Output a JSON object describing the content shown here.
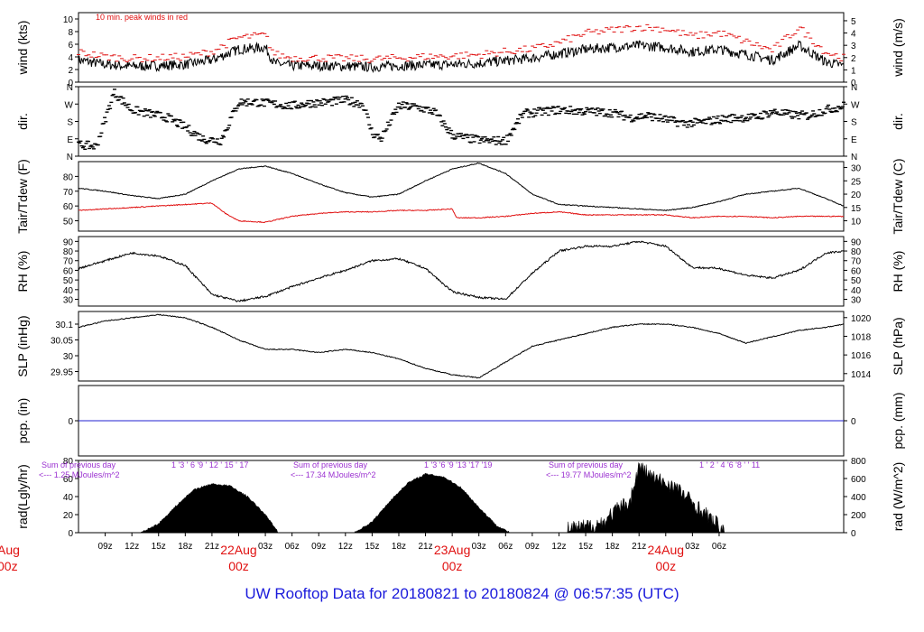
{
  "page": {
    "caption": "UW Rooftop Data for 20180821  to  20180824 @ 06:57:35  (UTC)"
  },
  "colors": {
    "frame": "#000000",
    "peak_wind": "#e01010",
    "dewpoint": "#e01010",
    "precip_line": "#2020d0",
    "radiation_text": "#9a30d0",
    "date_labels": "#e01010",
    "caption": "#1a1adb"
  },
  "chart_data": [
    {
      "type": "line",
      "panel": "wind",
      "ylabel": "wind (kts)",
      "ylabel_right": "wind (m/s)",
      "yticks": [
        0,
        2,
        4,
        6,
        8,
        10
      ],
      "yticks_right": [
        0,
        1,
        2,
        3,
        4,
        5
      ],
      "ylim": [
        0,
        11
      ],
      "annotation": "10 min. peak winds in red",
      "series": [
        {
          "x": [
            0,
            3,
            6,
            9,
            12,
            15,
            18,
            21,
            22,
            24,
            27,
            30,
            33,
            36,
            39,
            42,
            45,
            48,
            51,
            54,
            57,
            60,
            63,
            66,
            69,
            72,
            75,
            78,
            81,
            84,
            86
          ],
          "values": [
            3.5,
            2.8,
            2.5,
            2.6,
            2.8,
            3.5,
            5.2,
            5.5,
            3.0,
            2.6,
            2.6,
            2.5,
            2.4,
            2.6,
            2.7,
            2.8,
            3.0,
            3.4,
            3.8,
            4.5,
            5.2,
            5.5,
            5.8,
            5.5,
            4.8,
            5.2,
            4.4,
            3.5,
            5.8,
            3.2,
            2.6
          ]
        },
        {
          "x": [
            0,
            3,
            6,
            9,
            12,
            15,
            18,
            21,
            22,
            24,
            27,
            30,
            33,
            36,
            39,
            42,
            45,
            48,
            51,
            54,
            57,
            60,
            63,
            66,
            69,
            72,
            75,
            78,
            81,
            84,
            86
          ],
          "values": [
            4.5,
            3.8,
            3.5,
            3.6,
            3.8,
            4.6,
            6.8,
            7.2,
            4.2,
            3.6,
            3.6,
            3.5,
            3.4,
            3.6,
            3.8,
            3.9,
            4.1,
            4.6,
            5.0,
            6.0,
            7.5,
            8.0,
            8.5,
            8.2,
            7.0,
            7.6,
            6.2,
            4.8,
            8.4,
            4.5,
            3.6
          ]
        }
      ]
    },
    {
      "type": "scatter",
      "panel": "direction",
      "ylabel": "dir.",
      "ylabel_right": "dir.",
      "yticks": [
        "N",
        "E",
        "S",
        "W",
        "N"
      ],
      "ylim": [
        0,
        360
      ],
      "series": [
        {
          "x": [
            0,
            2,
            4,
            6,
            7,
            8,
            10,
            12,
            14,
            16,
            18,
            20,
            22,
            24,
            26,
            28,
            30,
            32,
            33,
            34,
            36,
            38,
            40,
            42,
            44,
            46,
            48,
            50,
            52,
            54,
            56,
            58,
            60,
            62,
            64,
            66,
            68,
            70,
            72,
            74,
            76,
            78,
            80,
            82,
            84,
            86
          ],
          "values": [
            60,
            50,
            330,
            240,
            230,
            220,
            200,
            150,
            90,
            80,
            280,
            280,
            270,
            260,
            275,
            280,
            290,
            270,
            120,
            90,
            260,
            255,
            230,
            110,
            90,
            80,
            80,
            220,
            230,
            240,
            235,
            230,
            225,
            200,
            210,
            190,
            170,
            175,
            190,
            200,
            200,
            230,
            215,
            210,
            240,
            260
          ]
        }
      ]
    },
    {
      "type": "line",
      "panel": "temperature",
      "ylabel": "Tair/Tdew (F)",
      "ylabel_right": "Tair/Tdew (C)",
      "yticks": [
        50,
        60,
        70,
        80
      ],
      "yticks_right": [
        10,
        15,
        20,
        25,
        30
      ],
      "ylim": [
        43,
        90
      ],
      "series": [
        {
          "x": [
            0,
            3,
            6,
            9,
            12,
            15,
            18,
            21,
            24,
            27,
            30,
            33,
            36,
            39,
            42,
            45,
            48,
            51,
            54,
            57,
            60,
            63,
            66,
            69,
            72,
            75,
            78,
            81,
            84,
            86
          ],
          "values": [
            72,
            70,
            67,
            65,
            68,
            77,
            85,
            87,
            82,
            75,
            69,
            66,
            68,
            77,
            85,
            89,
            82,
            68,
            61,
            60,
            59,
            58,
            57,
            59,
            63,
            68,
            70,
            72,
            65,
            60
          ]
        },
        {
          "x": [
            0,
            3,
            6,
            9,
            12,
            15,
            16.5,
            18,
            21,
            24,
            27,
            30,
            33,
            36,
            39,
            42,
            42.5,
            45,
            48,
            51,
            54,
            57,
            60,
            63,
            66,
            69,
            72,
            75,
            78,
            81,
            84,
            86
          ],
          "values": [
            57,
            58,
            59,
            60,
            61,
            62,
            55,
            50,
            49,
            53,
            55,
            56,
            56,
            57,
            57,
            58,
            52,
            52,
            53,
            55,
            56,
            54,
            54,
            54,
            54,
            52,
            53,
            53,
            52,
            53,
            53,
            53
          ]
        }
      ]
    },
    {
      "type": "line",
      "panel": "humidity",
      "ylabel": "RH (%)",
      "ylabel_right": "RH (%)",
      "yticks": [
        30,
        40,
        50,
        60,
        70,
        80,
        90
      ],
      "ylim": [
        23,
        95
      ],
      "series": [
        {
          "x": [
            0,
            3,
            6,
            9,
            12,
            15,
            18,
            21,
            24,
            27,
            30,
            33,
            36,
            39,
            42,
            45,
            48,
            51,
            54,
            57,
            60,
            63,
            66,
            69,
            72,
            75,
            78,
            81,
            84,
            86
          ],
          "values": [
            62,
            70,
            78,
            75,
            65,
            35,
            28,
            33,
            43,
            52,
            60,
            70,
            72,
            62,
            38,
            32,
            30,
            57,
            80,
            85,
            85,
            90,
            85,
            63,
            62,
            55,
            52,
            60,
            78,
            80
          ]
        }
      ]
    },
    {
      "type": "line",
      "panel": "pressure",
      "ylabel": "SLP (inHg)",
      "ylabel_right": "SLP (hPa)",
      "yticks": [
        29.95,
        30.0,
        30.05,
        30.1
      ],
      "yticks_right": [
        1014,
        1016,
        1018,
        1020
      ],
      "ylim": [
        29.92,
        30.14
      ],
      "series": [
        {
          "x": [
            0,
            3,
            6,
            9,
            12,
            15,
            18,
            21,
            24,
            27,
            30,
            33,
            36,
            39,
            42,
            45,
            48,
            51,
            54,
            57,
            60,
            63,
            66,
            69,
            72,
            75,
            78,
            81,
            84,
            86
          ],
          "values": [
            30.09,
            30.11,
            30.12,
            30.13,
            30.12,
            30.09,
            30.05,
            30.02,
            30.02,
            30.01,
            30.02,
            30.01,
            29.99,
            29.96,
            29.94,
            29.93,
            29.98,
            30.03,
            30.05,
            30.07,
            30.09,
            30.1,
            30.1,
            30.09,
            30.07,
            30.04,
            30.06,
            30.08,
            30.09,
            30.1
          ]
        }
      ]
    },
    {
      "type": "line",
      "panel": "precipitation",
      "ylabel": "pcp. (in)",
      "ylabel_right": "pcp. (mm)",
      "yticks": [
        0
      ],
      "yticks_right": [
        0
      ],
      "ylim": [
        -1,
        1
      ],
      "series": [
        {
          "x": [
            0,
            86
          ],
          "values": [
            0,
            0
          ]
        }
      ]
    },
    {
      "type": "area",
      "panel": "radiation",
      "ylabel": "rad(Lgly/hr)",
      "ylabel_right": "rad (W/m^2)",
      "yticks": [
        0,
        20,
        40,
        60,
        80
      ],
      "yticks_right": [
        0,
        200,
        400,
        600,
        800
      ],
      "ylim": [
        0,
        80
      ],
      "annotations": [
        {
          "line1": "Sum of previous day",
          "line2": "<--- 1.25 MJoules/m^2",
          "hours": "1  '3  '  6  '9  '  12  '  15  '  17"
        },
        {
          "line1": "Sum of previous day",
          "line2": "<--- 17.34 MJoules/m^2",
          "hours": "1  '3  '6  '9  '13  '17  '19"
        },
        {
          "line1": "Sum of previous day",
          "line2": "<--- 19.77 MJoules/m^2",
          "hours": "1  '  2  '  4  '6  '8  '  '  11"
        }
      ],
      "series": [
        {
          "x": [
            0,
            7,
            9,
            11,
            13,
            15,
            17,
            19,
            21,
            22.5,
            31,
            33,
            35,
            37,
            39,
            41,
            43,
            45,
            47,
            48.5,
            55,
            57,
            59,
            60,
            61,
            62,
            63,
            65,
            67,
            69,
            71,
            72.5,
            86
          ],
          "values": [
            0,
            0,
            10,
            30,
            48,
            54,
            52,
            40,
            20,
            0,
            0,
            12,
            35,
            55,
            65,
            62,
            50,
            28,
            8,
            0,
            0,
            3,
            8,
            18,
            25,
            32,
            70,
            55,
            48,
            30,
            12,
            0,
            0
          ]
        }
      ]
    }
  ],
  "x_axis": {
    "start_hour": 6,
    "hours_span": 86,
    "tick_labels": [
      "09z",
      "12z",
      "15z",
      "18z",
      "21z",
      "22Aug",
      "03z",
      "06z",
      "09z",
      "12z",
      "15z",
      "18z",
      "21z",
      "23Aug",
      "03z",
      "06z",
      "09z",
      "12z",
      "15z",
      "18z",
      "21z",
      "24Aug",
      "03z",
      "06z"
    ],
    "date_labels": [
      {
        "date": "Aug",
        "time": "00z"
      },
      {
        "date": "22Aug",
        "time": "00z"
      },
      {
        "date": "23Aug",
        "time": "00z"
      },
      {
        "date": "24Aug",
        "time": "00z"
      }
    ]
  }
}
